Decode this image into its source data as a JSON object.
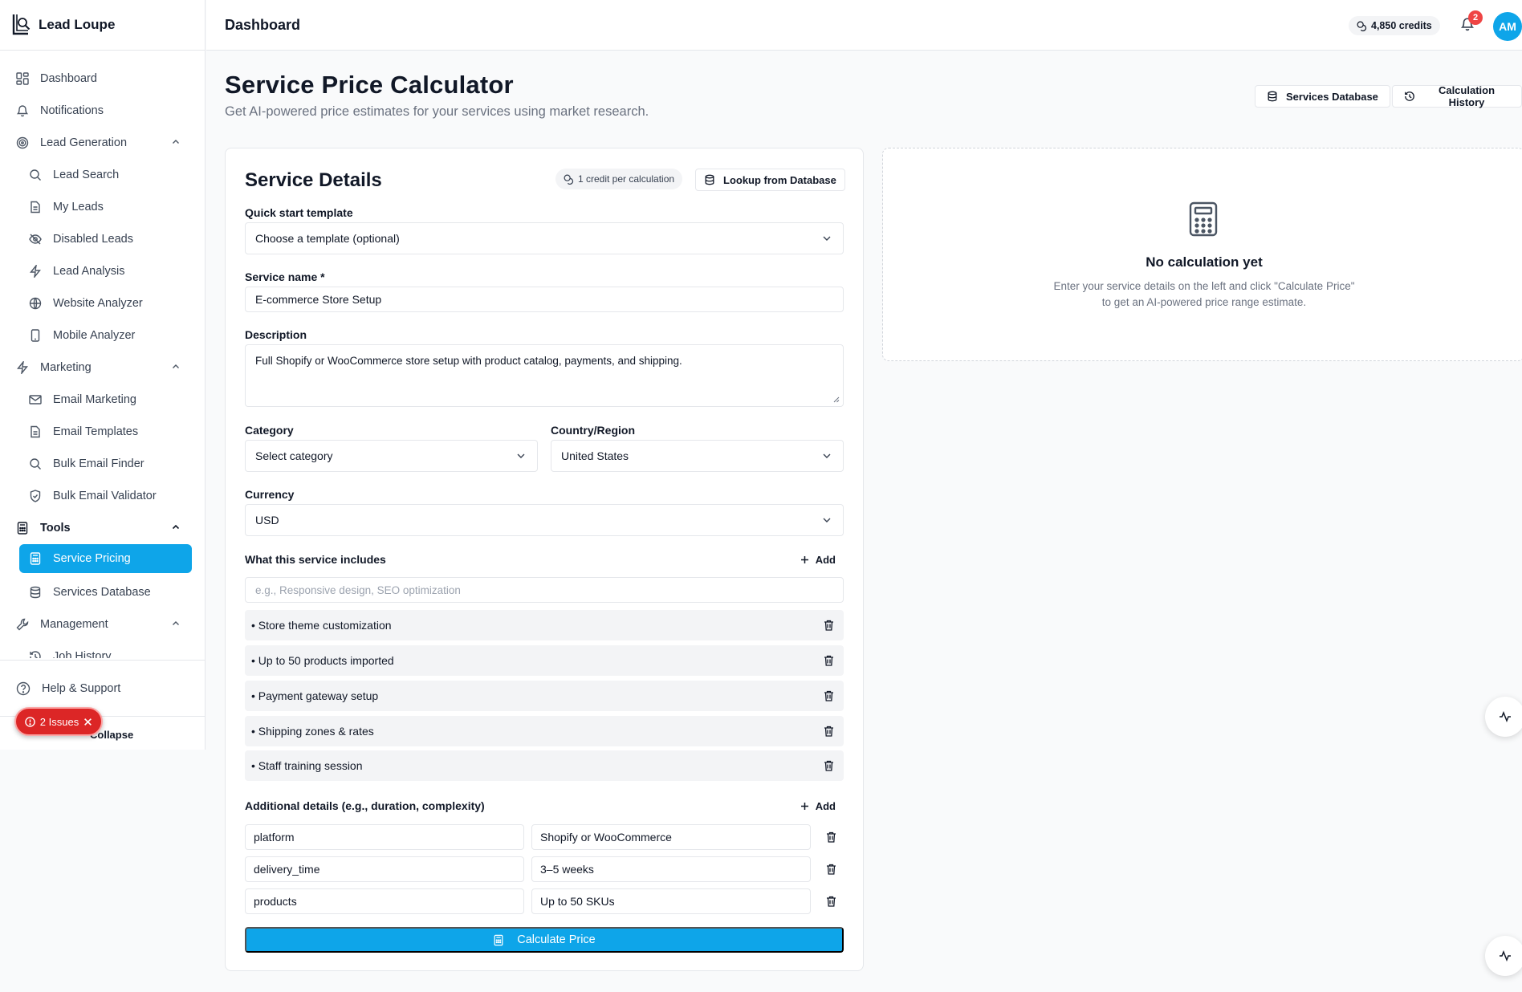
{
  "app": {
    "name": "Lead Loupe"
  },
  "header": {
    "title": "Dashboard",
    "credits": "4,850 credits",
    "notification_count": "2",
    "avatar_initials": "AM"
  },
  "sidebar": {
    "dashboard": "Dashboard",
    "notifications": "Notifications",
    "lead_generation": "Lead Generation",
    "lead_search": "Lead Search",
    "my_leads": "My Leads",
    "disabled_leads": "Disabled Leads",
    "lead_analysis": "Lead Analysis",
    "website_analyzer": "Website Analyzer",
    "mobile_analyzer": "Mobile Analyzer",
    "marketing": "Marketing",
    "email_marketing": "Email Marketing",
    "email_templates": "Email Templates",
    "bulk_email_finder": "Bulk Email Finder",
    "bulk_email_validator": "Bulk Email Validator",
    "tools": "Tools",
    "service_pricing": "Service Pricing",
    "services_database": "Services Database",
    "management": "Management",
    "job_history": "Job History",
    "help": "Help & Support",
    "collapse": "Collapse",
    "issues": "2 Issues"
  },
  "page": {
    "title": "Service Price Calculator",
    "subtitle": "Get AI-powered price estimates for your services using market research.",
    "services_database_btn": "Services Database",
    "calculation_history_btn": "Calculation History"
  },
  "form": {
    "title": "Service Details",
    "credit_pill": "1 credit per calculation",
    "lookup_btn": "Lookup from Database",
    "template_label": "Quick start template",
    "template_value": "Choose a template (optional)",
    "service_name_label": "Service name *",
    "service_name_value": "E-commerce Store Setup",
    "description_label": "Description",
    "description_value": "Full Shopify or WooCommerce store setup with product catalog, payments, and shipping.",
    "category_label": "Category",
    "category_value": "Select category",
    "country_label": "Country/Region",
    "country_value": "United States",
    "currency_label": "Currency",
    "currency_value": "USD",
    "includes_label": "What this service includes",
    "add_label": "Add",
    "includes_placeholder": "e.g., Responsive design, SEO optimization",
    "includes": [
      "• Store theme customization",
      "• Up to 50 products imported",
      "• Payment gateway setup",
      "• Shipping zones & rates",
      "• Staff training session"
    ],
    "details_label": "Additional details (e.g., duration, complexity)",
    "details": [
      {
        "key": "platform",
        "value": "Shopify or WooCommerce"
      },
      {
        "key": "delivery_time",
        "value": "3–5 weeks"
      },
      {
        "key": "products",
        "value": "Up to 50 SKUs"
      }
    ],
    "calculate_btn": "Calculate Price"
  },
  "result": {
    "title": "No calculation yet",
    "description": "Enter your service details on the left and click \"Calculate Price\" to get an AI-powered price range estimate."
  }
}
